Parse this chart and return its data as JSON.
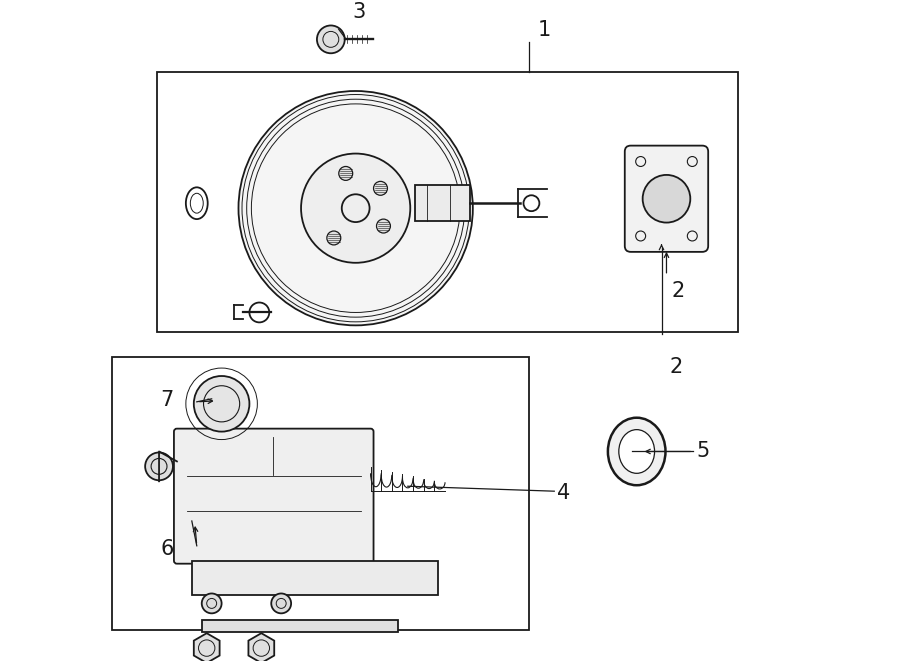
{
  "bg_color": "#ffffff",
  "line_color": "#1a1a1a",
  "fig_width": 9.0,
  "fig_height": 6.61
}
